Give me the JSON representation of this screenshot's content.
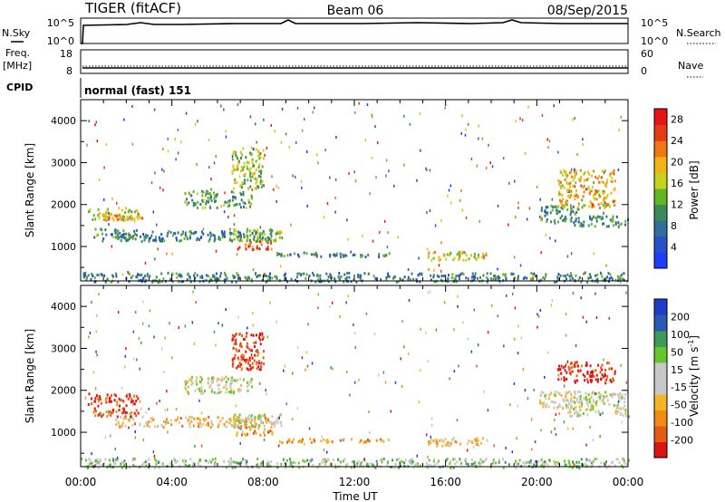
{
  "header": {
    "station": "TIGER (fitACF)",
    "beam": "Beam 06",
    "date": "08/Sep/2015"
  },
  "top_panels": {
    "nsky": {
      "label": "N.Sky",
      "ticks_left": [
        "10^5",
        "10^0"
      ],
      "right_label": "N.Search",
      "ticks_right": [
        "10^5",
        "10^0"
      ]
    },
    "freq": {
      "label_line1": "Freq.",
      "label_line2": "[MHz]",
      "ticks_left": [
        "18",
        "8"
      ],
      "right_label": "Nave",
      "ticks_right": [
        "60",
        "0"
      ]
    },
    "cpid": {
      "label": "CPID",
      "text": "normal (fast) 151"
    }
  },
  "colors": {
    "power": [
      "#1e3cff",
      "#2850c8",
      "#2f6f9a",
      "#3c8a5a",
      "#64b428",
      "#c8d21e",
      "#f0b414",
      "#f07814",
      "#e63c14",
      "#e61414"
    ],
    "velocity": [
      "#dc1414",
      "#e65a14",
      "#f08c14",
      "#f5b428",
      "#c8c8c8",
      "#c8c8c8",
      "#64c828",
      "#3c9a5a",
      "#2a5ab4",
      "#1e3cc8"
    ]
  },
  "chart_data": [
    {
      "type": "heatmap",
      "name": "power",
      "xlabel": "Time UT",
      "ylabel": "Slant Range [km]",
      "x_ticks": [
        "00:00",
        "04:00",
        "08:00",
        "12:00",
        "16:00",
        "20:00",
        "00:00"
      ],
      "x_range_hours": [
        0,
        24
      ],
      "y_ticks": [
        1000,
        2000,
        3000,
        4000
      ],
      "ylim": [
        180,
        4500
      ],
      "colorbar_label": "Power [dB]",
      "colorbar_ticks": [
        4,
        8,
        12,
        16,
        20,
        24,
        28
      ],
      "colorbar_range": [
        0,
        30
      ],
      "echo_regions": [
        {
          "t": [
            0.3,
            2.5
          ],
          "r": [
            1650,
            1950
          ],
          "level": 0.55
        },
        {
          "t": [
            0.5,
            2.5
          ],
          "r": [
            1150,
            1450
          ],
          "level": 0.35
        },
        {
          "t": [
            1.0,
            3.0
          ],
          "r": [
            1650,
            1800
          ],
          "level": 0.7
        },
        {
          "t": [
            1.5,
            8.5
          ],
          "r": [
            1150,
            1400
          ],
          "level": 0.3
        },
        {
          "t": [
            4.5,
            7.5
          ],
          "r": [
            1950,
            2350
          ],
          "level": 0.4
        },
        {
          "t": [
            6.6,
            8.0
          ],
          "r": [
            2400,
            3400
          ],
          "level": 0.5
        },
        {
          "t": [
            6.5,
            8.8
          ],
          "r": [
            1150,
            1450
          ],
          "level": 0.45
        },
        {
          "t": [
            6.8,
            8.4
          ],
          "r": [
            950,
            1150
          ],
          "level": 0.8
        },
        {
          "t": [
            8.5,
            13.5
          ],
          "r": [
            780,
            880
          ],
          "level": 0.3
        },
        {
          "t": [
            15.2,
            17.8
          ],
          "r": [
            700,
            900
          ],
          "level": 0.6
        },
        {
          "t": [
            20.1,
            21.8
          ],
          "r": [
            1600,
            2000
          ],
          "level": 0.35
        },
        {
          "t": [
            20.9,
            23.4
          ],
          "r": [
            1950,
            2850
          ],
          "level": 0.65
        },
        {
          "t": [
            21.5,
            24.0
          ],
          "r": [
            1500,
            1750
          ],
          "level": 0.35
        },
        {
          "t": [
            0.0,
            24.0
          ],
          "r": [
            180,
            400
          ],
          "level": 0.3
        }
      ]
    },
    {
      "type": "heatmap",
      "name": "velocity",
      "xlabel": "Time UT",
      "ylabel": "Slant Range [km]",
      "x_ticks": [
        "00:00",
        "04:00",
        "08:00",
        "12:00",
        "16:00",
        "20:00",
        "00:00"
      ],
      "x_range_hours": [
        0,
        24
      ],
      "y_ticks": [
        1000,
        2000,
        3000,
        4000
      ],
      "ylim": [
        180,
        4500
      ],
      "colorbar_label": "Velocity [m s^-1]",
      "colorbar_ticks": [
        "200",
        "100",
        "50",
        "15",
        "-15",
        "-50",
        "-100",
        "-200"
      ],
      "echo_regions": [
        {
          "t": [
            0.3,
            2.5
          ],
          "r": [
            1650,
            1950
          ],
          "level": 0.08
        },
        {
          "t": [
            0.5,
            2.5
          ],
          "r": [
            1400,
            1600
          ],
          "level": 0.12
        },
        {
          "t": [
            1.5,
            8.5
          ],
          "r": [
            1150,
            1400
          ],
          "level": 0.35
        },
        {
          "t": [
            4.5,
            7.5
          ],
          "r": [
            1950,
            2350
          ],
          "level": 0.5
        },
        {
          "t": [
            6.6,
            8.0
          ],
          "r": [
            2500,
            3400
          ],
          "level": 0.1
        },
        {
          "t": [
            6.5,
            8.8
          ],
          "r": [
            1150,
            1450
          ],
          "level": 0.5
        },
        {
          "t": [
            6.8,
            8.4
          ],
          "r": [
            950,
            1150
          ],
          "level": 0.25
        },
        {
          "t": [
            8.5,
            13.5
          ],
          "r": [
            780,
            880
          ],
          "level": 0.3
        },
        {
          "t": [
            15.2,
            17.8
          ],
          "r": [
            700,
            900
          ],
          "level": 0.35
        },
        {
          "t": [
            20.1,
            21.8
          ],
          "r": [
            1600,
            2000
          ],
          "level": 0.45
        },
        {
          "t": [
            20.9,
            23.4
          ],
          "r": [
            2200,
            2700
          ],
          "level": 0.05
        },
        {
          "t": [
            21.2,
            24.0
          ],
          "r": [
            1400,
            2000
          ],
          "level": 0.5
        },
        {
          "t": [
            0.0,
            24.0
          ],
          "r": [
            180,
            400
          ],
          "level": 0.6
        }
      ]
    }
  ]
}
